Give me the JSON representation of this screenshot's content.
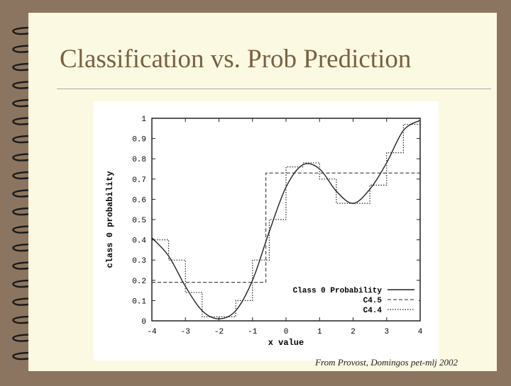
{
  "slide": {
    "title": "Classification vs. Prob Prediction",
    "caption": "From Provost, Domingos pet-mlj 2002"
  },
  "colors": {
    "background": "#8b7560",
    "page": "#fcf9e3",
    "title": "#7a6040"
  },
  "chart_data": {
    "type": "line",
    "xlabel": "x value",
    "ylabel": "class 0 probability",
    "xlim": [
      -4,
      4
    ],
    "ylim": [
      0,
      1
    ],
    "xticks": [
      "-4",
      "-3",
      "-2",
      "-1",
      "0",
      "1",
      "2",
      "3",
      "4"
    ],
    "yticks": [
      "0",
      "0.1",
      "0.2",
      "0.3",
      "0.4",
      "0.5",
      "0.6",
      "0.7",
      "0.8",
      "0.9",
      "1"
    ],
    "legend_position": "bottom-right",
    "series": [
      {
        "name": "Class 0 Probability",
        "style": "solid",
        "x": [
          -4,
          -3.5,
          -3,
          -2.5,
          -2,
          -1.5,
          -1,
          -0.5,
          0,
          0.5,
          1,
          1.5,
          2,
          2.5,
          3,
          3.5,
          4
        ],
        "y": [
          0.41,
          0.32,
          0.17,
          0.05,
          0.01,
          0.05,
          0.2,
          0.44,
          0.66,
          0.77,
          0.75,
          0.64,
          0.58,
          0.65,
          0.78,
          0.94,
          0.99
        ]
      },
      {
        "name": "C4.5",
        "style": "dashed",
        "x": [
          -4,
          -0.6,
          -0.6,
          4
        ],
        "y": [
          0.19,
          0.19,
          0.73,
          0.73
        ]
      },
      {
        "name": "C4.4",
        "style": "dotted",
        "x": [
          -4,
          -3.5,
          -3.5,
          -3,
          -3,
          -2.5,
          -2.5,
          -1.5,
          -1.5,
          -1,
          -1,
          -0.5,
          -0.5,
          0,
          0,
          0.5,
          0.5,
          1,
          1,
          1.5,
          1.5,
          2.5,
          2.5,
          3,
          3,
          3.5,
          3.5,
          4
        ],
        "y": [
          0.4,
          0.4,
          0.3,
          0.3,
          0.14,
          0.14,
          0.02,
          0.02,
          0.1,
          0.1,
          0.3,
          0.3,
          0.5,
          0.5,
          0.76,
          0.76,
          0.78,
          0.78,
          0.7,
          0.7,
          0.58,
          0.58,
          0.67,
          0.67,
          0.83,
          0.83,
          0.97,
          0.97
        ]
      }
    ]
  }
}
